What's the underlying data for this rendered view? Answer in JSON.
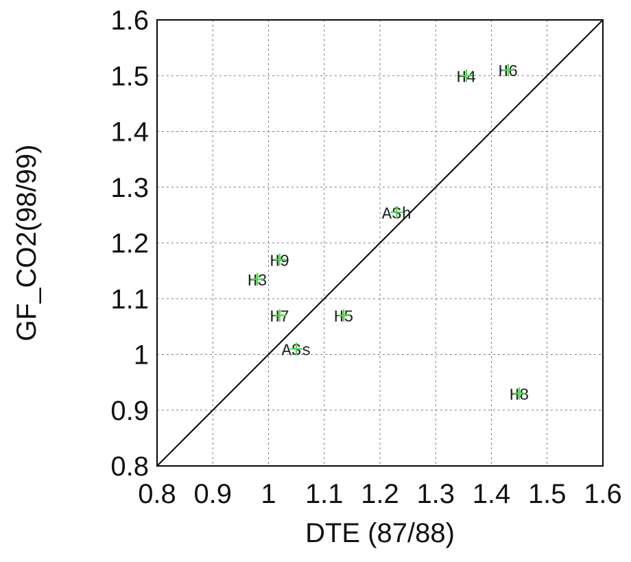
{
  "chart_data": {
    "type": "scatter",
    "title": "",
    "xlabel": "DTE (87/88)",
    "ylabel": "GF_CO2(98/99)",
    "xlim": [
      0.8,
      1.6
    ],
    "ylim": [
      0.8,
      1.6
    ],
    "xticks": [
      "0.8",
      "0.9",
      "1",
      "1.1",
      "1.2",
      "1.3",
      "1.4",
      "1.5",
      "1.6"
    ],
    "yticks": [
      "0.8",
      "0.9",
      "1",
      "1.1",
      "1.2",
      "1.3",
      "1.4",
      "1.5",
      "1.6"
    ],
    "grid": true,
    "reference_line": "y = x",
    "marker": "+",
    "marker_color": "#44dd44",
    "points": [
      {
        "label": "H4",
        "x": 1.355,
        "y": 1.5
      },
      {
        "label": "H6",
        "x": 1.43,
        "y": 1.51
      },
      {
        "label": "ASh",
        "x": 1.23,
        "y": 1.255
      },
      {
        "label": "H9",
        "x": 1.02,
        "y": 1.17
      },
      {
        "label": "H3",
        "x": 0.98,
        "y": 1.135
      },
      {
        "label": "H7",
        "x": 1.02,
        "y": 1.07
      },
      {
        "label": "H5",
        "x": 1.135,
        "y": 1.07
      },
      {
        "label": "ASs",
        "x": 1.05,
        "y": 1.01
      },
      {
        "label": "H8",
        "x": 1.45,
        "y": 0.93
      }
    ]
  }
}
